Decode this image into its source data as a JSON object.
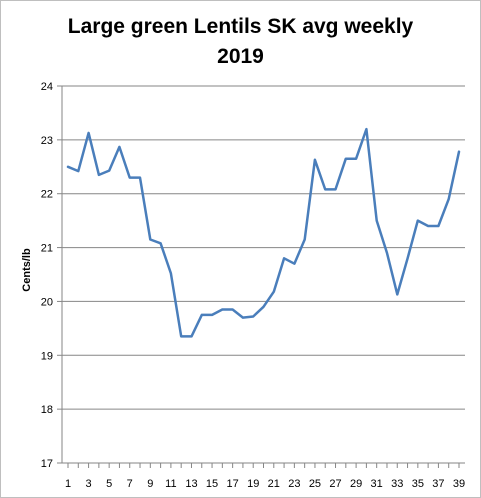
{
  "chart_data": {
    "type": "line",
    "title_line1": "Large green Lentils SK avg weekly",
    "title_line2": "2019",
    "ylabel": "Cents/lb",
    "xlabel": "",
    "ylim": [
      17,
      24
    ],
    "yticks": [
      "17",
      "18",
      "19",
      "20",
      "21",
      "22",
      "23",
      "24"
    ],
    "xtick_labels": [
      "1",
      "3",
      "5",
      "7",
      "9",
      "11",
      "13",
      "15",
      "17",
      "19",
      "21",
      "23",
      "25",
      "27",
      "29",
      "31",
      "33",
      "35",
      "37",
      "39"
    ],
    "grid": true,
    "series_color": "#4a7ebb",
    "x": [
      1,
      2,
      3,
      4,
      5,
      6,
      7,
      8,
      9,
      10,
      11,
      12,
      13,
      14,
      15,
      16,
      17,
      18,
      19,
      20,
      21,
      22,
      23,
      24,
      25,
      26,
      27,
      28,
      29,
      30,
      31,
      32,
      33,
      34,
      35,
      36,
      37,
      38,
      39
    ],
    "values": [
      22.5,
      22.42,
      23.13,
      22.35,
      22.43,
      22.87,
      22.3,
      22.3,
      21.15,
      21.08,
      20.52,
      19.35,
      19.35,
      19.75,
      19.75,
      19.85,
      19.85,
      19.7,
      19.72,
      19.9,
      20.18,
      20.8,
      20.7,
      21.15,
      22.63,
      22.08,
      22.08,
      22.65,
      22.65,
      23.2,
      21.5,
      20.9,
      20.13,
      20.8,
      21.5,
      21.4,
      21.4,
      21.9,
      22.78
    ]
  }
}
